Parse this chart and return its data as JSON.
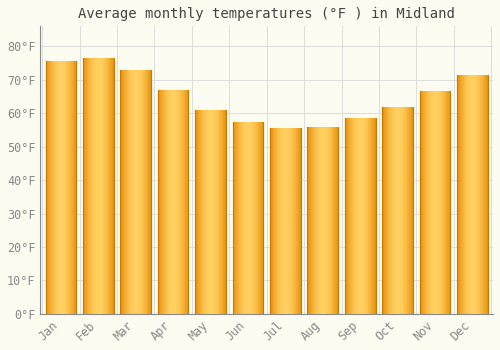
{
  "title": "Average monthly temperatures (°F ) in Midland",
  "months": [
    "Jan",
    "Feb",
    "Mar",
    "Apr",
    "May",
    "Jun",
    "Jul",
    "Aug",
    "Sep",
    "Oct",
    "Nov",
    "Dec"
  ],
  "values": [
    75.5,
    76.5,
    73.0,
    67.0,
    61.0,
    57.5,
    55.5,
    56.0,
    58.5,
    62.0,
    66.5,
    71.5
  ],
  "bar_color_left": "#E8900A",
  "bar_color_center": "#FFD060",
  "bar_color_right": "#E8900A",
  "bar_edge_color": "#CC7700",
  "background_color": "#FDFCF0",
  "plot_bg_color": "#FDFCF0",
  "grid_color": "#DDDDDD",
  "yticks": [
    0,
    10,
    20,
    30,
    40,
    50,
    60,
    70,
    80
  ],
  "ylim": [
    0,
    86
  ],
  "title_fontsize": 10,
  "tick_fontsize": 8.5,
  "title_color": "#444444",
  "tick_color": "#888888",
  "bar_width": 0.82,
  "gradient_steps": 50
}
